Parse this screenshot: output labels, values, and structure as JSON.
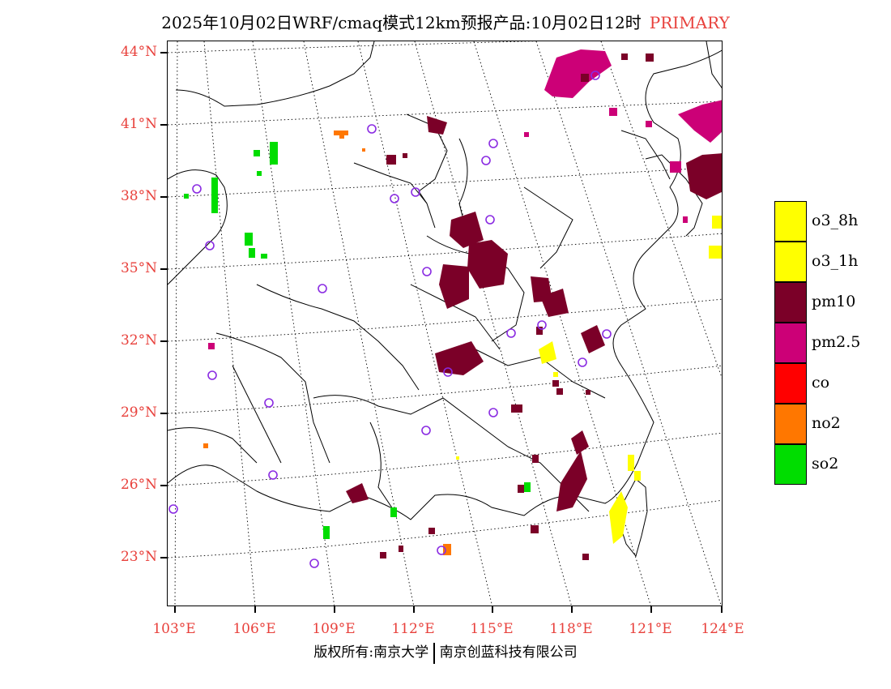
{
  "header": {
    "title": "2025年10月02日WRF/cmaq模式12km预报产品:10月02日12时",
    "tag": "PRIMARY"
  },
  "map": {
    "lat_labels": [
      "44°N",
      "41°N",
      "38°N",
      "35°N",
      "32°N",
      "29°N",
      "26°N",
      "23°N"
    ],
    "lon_labels": [
      "103°E",
      "106°E",
      "109°E",
      "112°E",
      "115°E",
      "118°E",
      "121°E",
      "124°E"
    ]
  },
  "legend": {
    "items": [
      {
        "label": "o3_8h",
        "color": "#ffff00"
      },
      {
        "label": "o3_1h",
        "color": "#ffff00"
      },
      {
        "label": "pm10",
        "color": "#7b0028"
      },
      {
        "label": "pm2.5",
        "color": "#cc0077"
      },
      {
        "label": "co",
        "color": "#ff0000"
      },
      {
        "label": "no2",
        "color": "#ff7700"
      },
      {
        "label": "so2",
        "color": "#00dd00"
      }
    ]
  },
  "footer": {
    "left": "版权所有:南京大学",
    "right": "南京创蓝科技有限公司"
  }
}
